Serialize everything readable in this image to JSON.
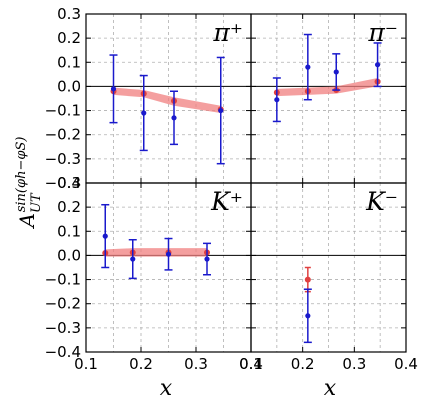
{
  "chart_data": {
    "type": "scatter",
    "ylabel": "A_UT^sin(φh−φS)",
    "xlabel": "x",
    "xlim": [
      0.1,
      0.4
    ],
    "x_ticks": [
      "0.1",
      "0.2",
      "0.3",
      "0.4"
    ],
    "grid": true,
    "colors": {
      "data": "#1a1acc",
      "band": "#f07f7f",
      "model_point": "#e04040",
      "zero_line": "#000000",
      "grid": "#b0b0b0"
    },
    "panels": [
      {
        "label": "π⁺",
        "ylim": [
          -0.4,
          0.3
        ],
        "y_ticks": [
          "0.3",
          "0.2",
          "0.1",
          "0.0",
          "−0.1",
          "−0.2",
          "−0.3",
          "−0.4"
        ],
        "points": [
          {
            "x": 0.15,
            "y": -0.01,
            "err": 0.14
          },
          {
            "x": 0.205,
            "y": -0.11,
            "err": 0.155
          },
          {
            "x": 0.26,
            "y": -0.13,
            "err": 0.11
          },
          {
            "x": 0.345,
            "y": -0.1,
            "err": 0.22
          }
        ],
        "model": [
          {
            "x": 0.15,
            "y": -0.02,
            "lo": -0.035,
            "hi": -0.005
          },
          {
            "x": 0.205,
            "y": -0.03,
            "lo": -0.045,
            "hi": -0.015
          },
          {
            "x": 0.26,
            "y": -0.06,
            "lo": -0.08,
            "hi": -0.045
          },
          {
            "x": 0.345,
            "y": -0.095,
            "lo": -0.11,
            "hi": -0.08
          }
        ]
      },
      {
        "label": "π⁻",
        "ylim": [
          -0.4,
          0.3
        ],
        "y_ticks": [],
        "points": [
          {
            "x": 0.15,
            "y": -0.055,
            "err": 0.09
          },
          {
            "x": 0.21,
            "y": 0.08,
            "err": 0.135
          },
          {
            "x": 0.265,
            "y": 0.06,
            "err": 0.075
          },
          {
            "x": 0.345,
            "y": 0.09,
            "err": 0.09
          }
        ],
        "model": [
          {
            "x": 0.15,
            "y": -0.025,
            "lo": -0.04,
            "hi": -0.01
          },
          {
            "x": 0.21,
            "y": -0.02,
            "lo": -0.035,
            "hi": -0.005
          },
          {
            "x": 0.265,
            "y": -0.015,
            "lo": -0.03,
            "hi": 0.0
          },
          {
            "x": 0.345,
            "y": 0.02,
            "lo": 0.0,
            "hi": 0.035
          }
        ]
      },
      {
        "label": "K⁺",
        "ylim": [
          -0.4,
          0.3
        ],
        "y_ticks": [
          "0.3",
          "0.2",
          "0.1",
          "0.0",
          "−0.1",
          "−0.2",
          "−0.3",
          "−0.4"
        ],
        "points": [
          {
            "x": 0.135,
            "y": 0.08,
            "err": 0.13
          },
          {
            "x": 0.185,
            "y": -0.015,
            "err": 0.08
          },
          {
            "x": 0.25,
            "y": 0.005,
            "err": 0.065
          },
          {
            "x": 0.32,
            "y": -0.015,
            "err": 0.065
          }
        ],
        "model": [
          {
            "x": 0.135,
            "y": 0.01,
            "lo": -0.005,
            "hi": 0.025
          },
          {
            "x": 0.185,
            "y": 0.012,
            "lo": -0.005,
            "hi": 0.03
          },
          {
            "x": 0.25,
            "y": 0.012,
            "lo": -0.005,
            "hi": 0.03
          },
          {
            "x": 0.32,
            "y": 0.012,
            "lo": -0.005,
            "hi": 0.03
          }
        ]
      },
      {
        "label": "K⁻",
        "ylim": [
          -0.4,
          0.3
        ],
        "y_ticks": [],
        "points": [
          {
            "x": 0.21,
            "y": -0.25,
            "err": 0.11
          }
        ],
        "model": [
          {
            "x": 0.21,
            "y": -0.1,
            "lo": -0.15,
            "hi": -0.05
          }
        ]
      }
    ]
  }
}
